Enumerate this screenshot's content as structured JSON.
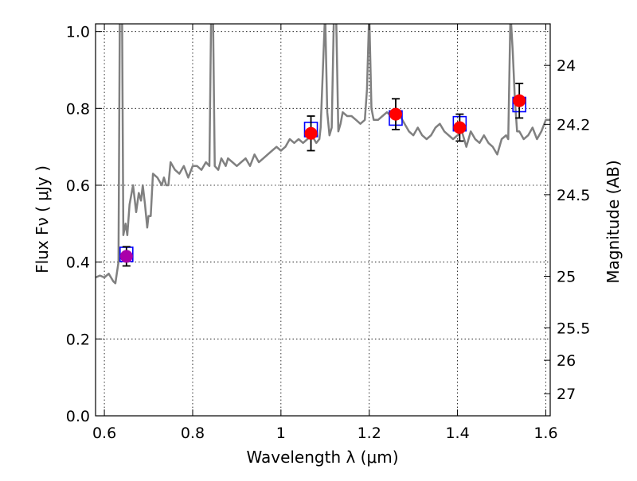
{
  "chart_data": {
    "type": "line",
    "title": "",
    "xlabel": "Wavelength  λ (μm)",
    "ylabel": "Flux  Fν  ( μJy )",
    "y2label": "Magnitude (AB)",
    "xlim": [
      0.58,
      1.61
    ],
    "ylim": [
      0.0,
      1.02
    ],
    "grid": true,
    "x_ticks": [
      {
        "value": 0.6,
        "label": "0.6"
      },
      {
        "value": 0.8,
        "label": "0.8"
      },
      {
        "value": 1.0,
        "label": "1"
      },
      {
        "value": 1.2,
        "label": "1.2"
      },
      {
        "value": 1.4,
        "label": "1.4"
      },
      {
        "value": 1.6,
        "label": "1.6"
      }
    ],
    "y_ticks": [
      {
        "value": 0.0,
        "label": "0.0"
      },
      {
        "value": 0.2,
        "label": "0.2"
      },
      {
        "value": 0.4,
        "label": "0.4"
      },
      {
        "value": 0.6,
        "label": "0.6"
      },
      {
        "value": 0.8,
        "label": "0.8"
      },
      {
        "value": 1.0,
        "label": "1.0"
      }
    ],
    "y2_ticks": [
      {
        "value": 24,
        "label": "24"
      },
      {
        "value": 24.2,
        "label": "24.2"
      },
      {
        "value": 24.5,
        "label": "24.5"
      },
      {
        "value": 25,
        "label": "25"
      },
      {
        "value": 25.5,
        "label": "25.5"
      },
      {
        "value": 26,
        "label": "26"
      },
      {
        "value": 27,
        "label": "27"
      }
    ],
    "spectrum": {
      "color": "#808080",
      "x": [
        0.58,
        0.59,
        0.6,
        0.61,
        0.62,
        0.625,
        0.632,
        0.635,
        0.64,
        0.643,
        0.648,
        0.652,
        0.657,
        0.665,
        0.672,
        0.678,
        0.683,
        0.687,
        0.692,
        0.697,
        0.7,
        0.705,
        0.71,
        0.72,
        0.73,
        0.735,
        0.74,
        0.745,
        0.75,
        0.76,
        0.77,
        0.78,
        0.79,
        0.8,
        0.81,
        0.82,
        0.83,
        0.838,
        0.842,
        0.846,
        0.85,
        0.858,
        0.865,
        0.875,
        0.88,
        0.89,
        0.9,
        0.91,
        0.92,
        0.93,
        0.94,
        0.95,
        0.96,
        0.97,
        0.98,
        0.99,
        1.0,
        1.01,
        1.02,
        1.03,
        1.04,
        1.05,
        1.06,
        1.07,
        1.08,
        1.087,
        1.09,
        1.095,
        1.1,
        1.105,
        1.11,
        1.115,
        1.12,
        1.125,
        1.13,
        1.135,
        1.14,
        1.15,
        1.16,
        1.17,
        1.18,
        1.19,
        1.195,
        1.2,
        1.205,
        1.21,
        1.22,
        1.23,
        1.24,
        1.25,
        1.26,
        1.27,
        1.28,
        1.29,
        1.3,
        1.31,
        1.32,
        1.33,
        1.34,
        1.35,
        1.36,
        1.37,
        1.38,
        1.39,
        1.4,
        1.41,
        1.42,
        1.43,
        1.44,
        1.45,
        1.46,
        1.47,
        1.48,
        1.49,
        1.5,
        1.51,
        1.515,
        1.52,
        1.525,
        1.53,
        1.535,
        1.54,
        1.55,
        1.56,
        1.57,
        1.58,
        1.59,
        1.6,
        1.61
      ],
      "y": [
        0.36,
        0.365,
        0.36,
        0.37,
        0.35,
        0.345,
        0.4,
        1.05,
        1.05,
        0.47,
        0.5,
        0.47,
        0.55,
        0.6,
        0.53,
        0.58,
        0.56,
        0.6,
        0.55,
        0.49,
        0.52,
        0.52,
        0.63,
        0.62,
        0.6,
        0.62,
        0.6,
        0.6,
        0.66,
        0.64,
        0.63,
        0.65,
        0.62,
        0.65,
        0.65,
        0.64,
        0.66,
        0.65,
        1.05,
        1.05,
        0.65,
        0.64,
        0.67,
        0.65,
        0.67,
        0.66,
        0.65,
        0.66,
        0.67,
        0.65,
        0.68,
        0.66,
        0.67,
        0.68,
        0.69,
        0.7,
        0.69,
        0.7,
        0.72,
        0.71,
        0.72,
        0.71,
        0.72,
        0.73,
        0.71,
        0.72,
        0.75,
        0.9,
        1.05,
        0.79,
        0.73,
        0.75,
        1.05,
        1.05,
        0.74,
        0.76,
        0.79,
        0.78,
        0.78,
        0.77,
        0.76,
        0.77,
        0.85,
        1.05,
        0.8,
        0.77,
        0.77,
        0.78,
        0.79,
        0.78,
        0.8,
        0.78,
        0.76,
        0.74,
        0.73,
        0.75,
        0.73,
        0.72,
        0.73,
        0.75,
        0.76,
        0.74,
        0.73,
        0.72,
        0.73,
        0.74,
        0.7,
        0.74,
        0.72,
        0.71,
        0.73,
        0.71,
        0.7,
        0.68,
        0.72,
        0.73,
        0.72,
        1.05,
        0.95,
        0.82,
        0.74,
        0.74,
        0.72,
        0.73,
        0.75,
        0.72,
        0.74,
        0.77,
        0.77
      ]
    },
    "model_points": {
      "color": "#0000ff",
      "marker": "open-square",
      "x": [
        0.65,
        1.068,
        1.26,
        1.405,
        1.54
      ],
      "y": [
        0.42,
        0.745,
        0.775,
        0.76,
        0.81
      ]
    },
    "observed_points": {
      "color": "#ff0000",
      "marker": "filled-circle",
      "first_point_color": "#aa00aa",
      "x": [
        0.65,
        1.068,
        1.26,
        1.405,
        1.54
      ],
      "y": [
        0.415,
        0.735,
        0.785,
        0.75,
        0.82
      ],
      "yerr": [
        0.025,
        0.045,
        0.04,
        0.035,
        0.045
      ]
    }
  }
}
